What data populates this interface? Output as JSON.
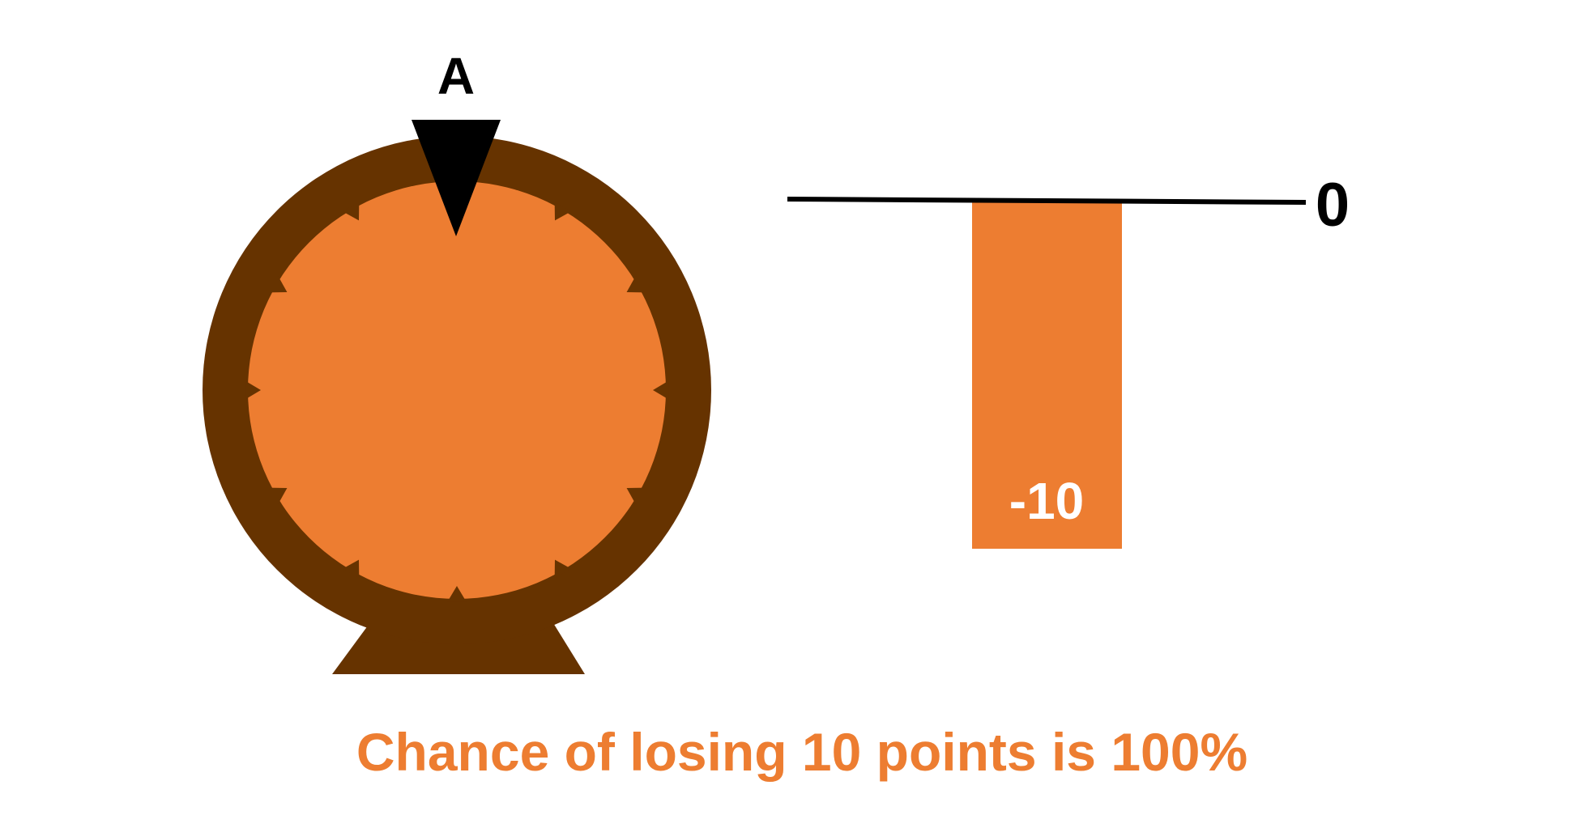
{
  "wheel": {
    "label": "A",
    "colors": {
      "rim": "#663300",
      "face": "#ed7d31",
      "pointer": "#000000"
    }
  },
  "bar": {
    "value": -10,
    "value_label": "-10",
    "baseline_value": 0,
    "baseline_label": "0",
    "colors": {
      "fill": "#ed7d31",
      "baseline": "#000000",
      "value_text": "#ffffff"
    }
  },
  "caption": {
    "text": "Chance of losing 10 points is 100%",
    "color": "#ed7d31"
  }
}
